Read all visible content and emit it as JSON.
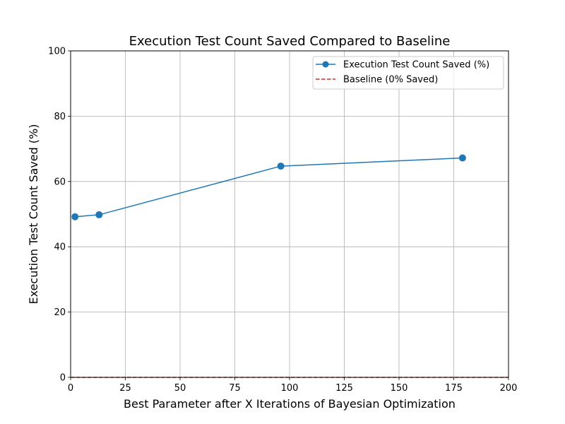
{
  "chart_data": {
    "type": "line",
    "title": "Execution Test Count Saved Compared to Baseline",
    "xlabel": "Best Parameter after X Iterations of Bayesian Optimization",
    "ylabel": "Execution Test Count Saved (%)",
    "xlim": [
      0,
      200
    ],
    "ylim": [
      0,
      100
    ],
    "xticks": [
      0,
      25,
      50,
      75,
      100,
      125,
      150,
      175,
      200
    ],
    "yticks": [
      0,
      20,
      40,
      60,
      80,
      100
    ],
    "grid": true,
    "legend_position": "top-right",
    "series": [
      {
        "name": "Execution Test Count Saved (%)",
        "color": "#1f77b4",
        "style": "solid",
        "marker": "circle",
        "x": [
          2,
          13,
          96,
          179
        ],
        "y": [
          49.2,
          49.8,
          64.7,
          67.2
        ]
      },
      {
        "name": "Baseline (0% Saved)",
        "color": "#d62728",
        "style": "dashed",
        "marker": "none",
        "x": [
          0,
          200
        ],
        "y": [
          0,
          0
        ]
      }
    ]
  }
}
